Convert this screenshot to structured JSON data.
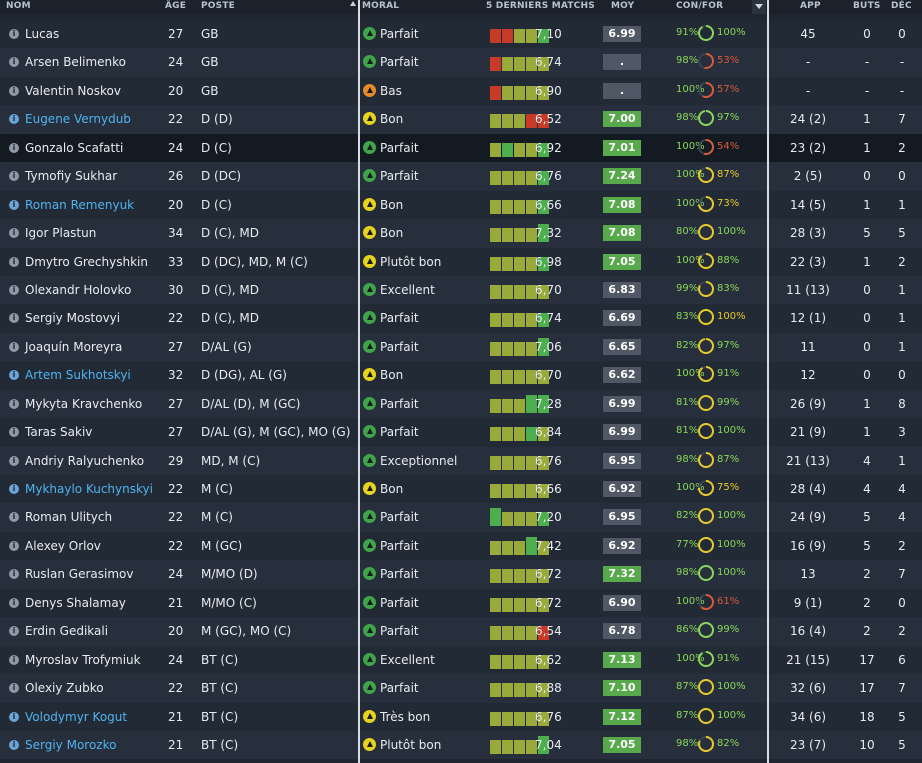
{
  "header": {
    "name": "NOM",
    "age": "ÂGE",
    "position": "POSTE",
    "morale": "MORAL",
    "form": "5 DERNIERS MATCHS",
    "avg": "MOY",
    "conf": "CON/FOR",
    "apps": "APP",
    "goals": "BUTS",
    "pom": "DÉC"
  },
  "colors": {
    "highlight_name": "#4fb3f0",
    "good": "#4cae4c",
    "mid": "#9aaa3a",
    "bad": "#c83a28",
    "morale_green": "#3fa44a",
    "morale_yellow": "#e6d31b",
    "morale_orange": "#e88a2a",
    "conf_green": "#8ad65a",
    "fit_yellow": "#e6c92a",
    "fit_red": "#d85a3a",
    "rating_bg": "#4f5864",
    "rating_green": "#58a84c"
  },
  "players": [
    {
      "name": "Lucas",
      "hl": false,
      "age": "27",
      "pos": "GB",
      "morale": "Parfait",
      "mc": "g",
      "form": [
        3,
        3,
        3,
        3,
        3
      ],
      "fc": [
        "r",
        "r",
        "o",
        "o",
        "g"
      ],
      "avg": "7,10",
      "rating": "6.99",
      "rg": false,
      "conf": "91%",
      "ring": 0.91,
      "rc": "g",
      "fit": "100%",
      "fc2": "g",
      "apps": "45",
      "goals": "0",
      "pom": "0"
    },
    {
      "name": "Arsen Belimenko",
      "hl": false,
      "age": "24",
      "pos": "GB",
      "morale": "Parfait",
      "mc": "g",
      "form": [
        3,
        3,
        3,
        3,
        3
      ],
      "fc": [
        "r",
        "o",
        "o",
        "o",
        "o"
      ],
      "avg": "6,74",
      "rating": ".",
      "rg": false,
      "conf": "98%",
      "ring": 0.53,
      "rc": "r",
      "fit": "53%",
      "fc2": "r",
      "apps": "-",
      "goals": "-",
      "pom": "-"
    },
    {
      "name": "Valentin Noskov",
      "hl": false,
      "age": "20",
      "pos": "GB",
      "morale": "Bas",
      "mc": "o",
      "form": [
        3,
        3,
        3,
        3,
        3
      ],
      "fc": [
        "r",
        "o",
        "o",
        "o",
        "o"
      ],
      "avg": "6,90",
      "rating": ".",
      "rg": false,
      "conf": "100%",
      "ring": 0.57,
      "rc": "r",
      "fit": "57%",
      "fc2": "r",
      "apps": "-",
      "goals": "-",
      "pom": "-"
    },
    {
      "name": "Eugene Vernydub",
      "hl": true,
      "age": "22",
      "pos": "D (D)",
      "morale": "Bon",
      "mc": "y",
      "form": [
        3,
        3,
        3,
        3,
        3
      ],
      "fc": [
        "o",
        "o",
        "o",
        "r",
        "r"
      ],
      "avg": "6,52",
      "rating": "7.00",
      "rg": true,
      "conf": "98%",
      "ring": 0.97,
      "rc": "g",
      "fit": "97%",
      "fc2": "g",
      "apps": "24 (2)",
      "goals": "1",
      "pom": "7"
    },
    {
      "name": "Gonzalo Scafatti",
      "hl": false,
      "row_hl": true,
      "age": "24",
      "pos": "D (C)",
      "morale": "Parfait",
      "mc": "g",
      "form": [
        3,
        3,
        3,
        3,
        3
      ],
      "fc": [
        "o",
        "g",
        "o",
        "o",
        "g"
      ],
      "avg": "6,92",
      "rating": "7.01",
      "rg": true,
      "conf": "100%",
      "ring": 0.54,
      "rc": "r",
      "fit": "54%",
      "fc2": "r",
      "apps": "23 (2)",
      "goals": "1",
      "pom": "2"
    },
    {
      "name": "Tymofiy Sukhar",
      "hl": false,
      "age": "26",
      "pos": "D (DC)",
      "morale": "Parfait",
      "mc": "g",
      "form": [
        3,
        3,
        3,
        3,
        3
      ],
      "fc": [
        "o",
        "o",
        "o",
        "o",
        "g"
      ],
      "avg": "6,76",
      "rating": "7.24",
      "rg": true,
      "conf": "100%",
      "ring": 0.87,
      "rc": "y",
      "fit": "87%",
      "fc2": "y",
      "apps": "2 (5)",
      "goals": "0",
      "pom": "0"
    },
    {
      "name": "Roman Remenyuk",
      "hl": true,
      "age": "20",
      "pos": "D (C)",
      "morale": "Bon",
      "mc": "y",
      "form": [
        3,
        3,
        3,
        3,
        3
      ],
      "fc": [
        "o",
        "o",
        "o",
        "o",
        "g"
      ],
      "avg": "6,66",
      "rating": "7.08",
      "rg": true,
      "conf": "100%",
      "ring": 0.73,
      "rc": "o",
      "fit": "73%",
      "fc2": "y",
      "apps": "14 (5)",
      "goals": "1",
      "pom": "1"
    },
    {
      "name": "Igor Plastun",
      "hl": false,
      "age": "34",
      "pos": "D (C), MD",
      "morale": "Bon",
      "mc": "y",
      "form": [
        3,
        3,
        3,
        3,
        6
      ],
      "fc": [
        "o",
        "o",
        "o",
        "o",
        "g"
      ],
      "avg": "7,32",
      "rating": "7.08",
      "rg": true,
      "conf": "80%",
      "ring": 1.0,
      "rc": "y",
      "fit": "100%",
      "fc2": "g",
      "apps": "28 (3)",
      "goals": "5",
      "pom": "5"
    },
    {
      "name": "Dmytro Grechyshkin",
      "hl": false,
      "age": "33",
      "pos": "D (DC), MD, M (C)",
      "morale": "Plutôt bon",
      "mc": "y",
      "form": [
        3,
        3,
        3,
        3,
        3
      ],
      "fc": [
        "o",
        "o",
        "o",
        "o",
        "g"
      ],
      "avg": "6,98",
      "rating": "7.05",
      "rg": true,
      "conf": "100%",
      "ring": 0.88,
      "rc": "y",
      "fit": "88%",
      "fc2": "g",
      "apps": "22 (3)",
      "goals": "1",
      "pom": "2"
    },
    {
      "name": "Olexandr Holovko",
      "hl": false,
      "age": "30",
      "pos": "D (C), MD",
      "morale": "Excellent",
      "mc": "g",
      "form": [
        3,
        3,
        3,
        3,
        3
      ],
      "fc": [
        "o",
        "o",
        "o",
        "o",
        "o"
      ],
      "avg": "6,70",
      "rating": "6.83",
      "rg": false,
      "conf": "99%",
      "ring": 0.83,
      "rc": "y",
      "fit": "83%",
      "fc2": "g",
      "apps": "11 (13)",
      "goals": "0",
      "pom": "1"
    },
    {
      "name": "Sergiy Mostovyi",
      "hl": false,
      "age": "22",
      "pos": "D (C), MD",
      "morale": "Parfait",
      "mc": "g",
      "form": [
        3,
        3,
        3,
        3,
        3
      ],
      "fc": [
        "o",
        "o",
        "o",
        "o",
        "g"
      ],
      "avg": "6,74",
      "rating": "6.69",
      "rg": false,
      "conf": "83%",
      "ring": 1.0,
      "rc": "y",
      "fit": "100%",
      "fc2": "y",
      "apps": "12 (1)",
      "goals": "0",
      "pom": "1"
    },
    {
      "name": "Joaquín Moreyra",
      "hl": false,
      "age": "27",
      "pos": "D/AL (G)",
      "morale": "Parfait",
      "mc": "g",
      "form": [
        3,
        3,
        3,
        3,
        6
      ],
      "fc": [
        "o",
        "o",
        "o",
        "o",
        "g"
      ],
      "avg": "7,06",
      "rating": "6.65",
      "rg": false,
      "conf": "82%",
      "ring": 0.97,
      "rc": "y",
      "fit": "97%",
      "fc2": "g",
      "apps": "11",
      "goals": "0",
      "pom": "1"
    },
    {
      "name": "Artem Sukhotskyi",
      "hl": true,
      "age": "32",
      "pos": "D (DG), AL (G)",
      "morale": "Bon",
      "mc": "y",
      "form": [
        3,
        3,
        3,
        3,
        3
      ],
      "fc": [
        "o",
        "o",
        "o",
        "o",
        "o"
      ],
      "avg": "6,70",
      "rating": "6.62",
      "rg": false,
      "conf": "100%",
      "ring": 0.91,
      "rc": "y",
      "fit": "91%",
      "fc2": "g",
      "apps": "12",
      "goals": "0",
      "pom": "0"
    },
    {
      "name": "Mykyta Kravchenko",
      "hl": false,
      "age": "27",
      "pos": "D/AL (D), M (GC)",
      "morale": "Parfait",
      "mc": "g",
      "form": [
        3,
        3,
        3,
        6,
        6
      ],
      "fc": [
        "o",
        "o",
        "o",
        "g",
        "g"
      ],
      "avg": "7,28",
      "rating": "6.99",
      "rg": false,
      "conf": "81%",
      "ring": 0.99,
      "rc": "y",
      "fit": "99%",
      "fc2": "g",
      "apps": "26 (9)",
      "goals": "1",
      "pom": "8"
    },
    {
      "name": "Taras Sakiv",
      "hl": false,
      "age": "27",
      "pos": "D/AL (G), M (GC), MO (G)",
      "morale": "Parfait",
      "mc": "g",
      "form": [
        3,
        3,
        3,
        3,
        3
      ],
      "fc": [
        "o",
        "o",
        "o",
        "g",
        "o"
      ],
      "avg": "6,84",
      "rating": "6.99",
      "rg": false,
      "conf": "81%",
      "ring": 1.0,
      "rc": "y",
      "fit": "100%",
      "fc2": "g",
      "apps": "21 (9)",
      "goals": "1",
      "pom": "3"
    },
    {
      "name": "Andriy Ralyuchenko",
      "hl": false,
      "age": "29",
      "pos": "MD, M (C)",
      "morale": "Exceptionnel",
      "mc": "g",
      "form": [
        3,
        3,
        3,
        3,
        3
      ],
      "fc": [
        "o",
        "o",
        "o",
        "o",
        "o"
      ],
      "avg": "6,76",
      "rating": "6.95",
      "rg": false,
      "conf": "98%",
      "ring": 0.87,
      "rc": "y",
      "fit": "87%",
      "fc2": "g",
      "apps": "21 (13)",
      "goals": "4",
      "pom": "1"
    },
    {
      "name": "Mykhaylo Kuchynskyi",
      "hl": true,
      "age": "22",
      "pos": "M (C)",
      "morale": "Bon",
      "mc": "y",
      "form": [
        3,
        3,
        3,
        3,
        3
      ],
      "fc": [
        "o",
        "o",
        "o",
        "o",
        "o"
      ],
      "avg": "6,66",
      "rating": "6.92",
      "rg": false,
      "conf": "100%",
      "ring": 0.75,
      "rc": "o",
      "fit": "75%",
      "fc2": "y",
      "apps": "28 (4)",
      "goals": "4",
      "pom": "4"
    },
    {
      "name": "Roman Ulitych",
      "hl": false,
      "age": "22",
      "pos": "M (C)",
      "morale": "Parfait",
      "mc": "g",
      "form": [
        6,
        3,
        3,
        3,
        3
      ],
      "fc": [
        "g",
        "o",
        "o",
        "o",
        "g"
      ],
      "avg": "7,20",
      "rating": "6.95",
      "rg": false,
      "conf": "82%",
      "ring": 1.0,
      "rc": "y",
      "fit": "100%",
      "fc2": "g",
      "apps": "24 (9)",
      "goals": "5",
      "pom": "4"
    },
    {
      "name": "Alexey Orlov",
      "hl": false,
      "age": "22",
      "pos": "M (GC)",
      "morale": "Parfait",
      "mc": "g",
      "form": [
        3,
        3,
        3,
        6,
        3
      ],
      "fc": [
        "o",
        "o",
        "o",
        "g",
        "o"
      ],
      "avg": "7,42",
      "rating": "6.92",
      "rg": false,
      "conf": "77%",
      "ring": 1.0,
      "rc": "y",
      "fit": "100%",
      "fc2": "g",
      "apps": "16 (9)",
      "goals": "5",
      "pom": "2"
    },
    {
      "name": "Ruslan Gerasimov",
      "hl": false,
      "age": "24",
      "pos": "M/MO (D)",
      "morale": "Parfait",
      "mc": "g",
      "form": [
        3,
        3,
        3,
        3,
        3
      ],
      "fc": [
        "o",
        "o",
        "o",
        "o",
        "o"
      ],
      "avg": "6,72",
      "rating": "7.32",
      "rg": true,
      "conf": "98%",
      "ring": 1.0,
      "rc": "g",
      "fit": "100%",
      "fc2": "g",
      "apps": "13",
      "goals": "2",
      "pom": "7"
    },
    {
      "name": "Denys Shalamay",
      "hl": false,
      "age": "21",
      "pos": "M/MO (C)",
      "morale": "Parfait",
      "mc": "g",
      "form": [
        3,
        3,
        3,
        3,
        3
      ],
      "fc": [
        "o",
        "o",
        "o",
        "o",
        "o"
      ],
      "avg": "6,72",
      "rating": "6.90",
      "rg": false,
      "conf": "100%",
      "ring": 0.61,
      "rc": "r",
      "fit": "61%",
      "fc2": "r",
      "apps": "9 (1)",
      "goals": "2",
      "pom": "0"
    },
    {
      "name": "Erdin Gedikali",
      "hl": false,
      "age": "20",
      "pos": "M (GC), MO (C)",
      "morale": "Parfait",
      "mc": "g",
      "form": [
        3,
        3,
        3,
        3,
        3
      ],
      "fc": [
        "o",
        "o",
        "o",
        "o",
        "r"
      ],
      "avg": "6,54",
      "rating": "6.78",
      "rg": false,
      "conf": "86%",
      "ring": 0.99,
      "rc": "g",
      "fit": "99%",
      "fc2": "g",
      "apps": "16 (4)",
      "goals": "2",
      "pom": "2"
    },
    {
      "name": "Myroslav Trofymiuk",
      "hl": false,
      "age": "24",
      "pos": "BT (C)",
      "morale": "Excellent",
      "mc": "g",
      "form": [
        3,
        3,
        3,
        3,
        3
      ],
      "fc": [
        "o",
        "o",
        "o",
        "o",
        "o"
      ],
      "avg": "6,62",
      "rating": "7.13",
      "rg": true,
      "conf": "100%",
      "ring": 0.91,
      "rc": "g",
      "fit": "91%",
      "fc2": "g",
      "apps": "21 (15)",
      "goals": "17",
      "pom": "6"
    },
    {
      "name": "Olexiy Zubko",
      "hl": false,
      "age": "22",
      "pos": "BT (C)",
      "morale": "Parfait",
      "mc": "g",
      "form": [
        3,
        3,
        3,
        3,
        3
      ],
      "fc": [
        "o",
        "o",
        "o",
        "o",
        "o"
      ],
      "avg": "6,88",
      "rating": "7.10",
      "rg": true,
      "conf": "87%",
      "ring": 1.0,
      "rc": "y",
      "fit": "100%",
      "fc2": "g",
      "apps": "32 (6)",
      "goals": "17",
      "pom": "7"
    },
    {
      "name": "Volodymyr Kogut",
      "hl": true,
      "age": "21",
      "pos": "BT (C)",
      "morale": "Très bon",
      "mc": "y",
      "form": [
        3,
        3,
        3,
        3,
        3
      ],
      "fc": [
        "o",
        "o",
        "o",
        "o",
        "o"
      ],
      "avg": "6,76",
      "rating": "7.12",
      "rg": true,
      "conf": "87%",
      "ring": 1.0,
      "rc": "y",
      "fit": "100%",
      "fc2": "g",
      "apps": "34 (6)",
      "goals": "18",
      "pom": "5"
    },
    {
      "name": "Sergiy Morozko",
      "hl": true,
      "age": "21",
      "pos": "BT (C)",
      "morale": "Plutôt bon",
      "mc": "y",
      "form": [
        3,
        3,
        3,
        3,
        6
      ],
      "fc": [
        "o",
        "o",
        "o",
        "o",
        "g"
      ],
      "avg": "7,04",
      "rating": "7.05",
      "rg": true,
      "conf": "98%",
      "ring": 0.82,
      "rc": "y",
      "fit": "82%",
      "fc2": "g",
      "apps": "23 (7)",
      "goals": "10",
      "pom": "5"
    }
  ]
}
